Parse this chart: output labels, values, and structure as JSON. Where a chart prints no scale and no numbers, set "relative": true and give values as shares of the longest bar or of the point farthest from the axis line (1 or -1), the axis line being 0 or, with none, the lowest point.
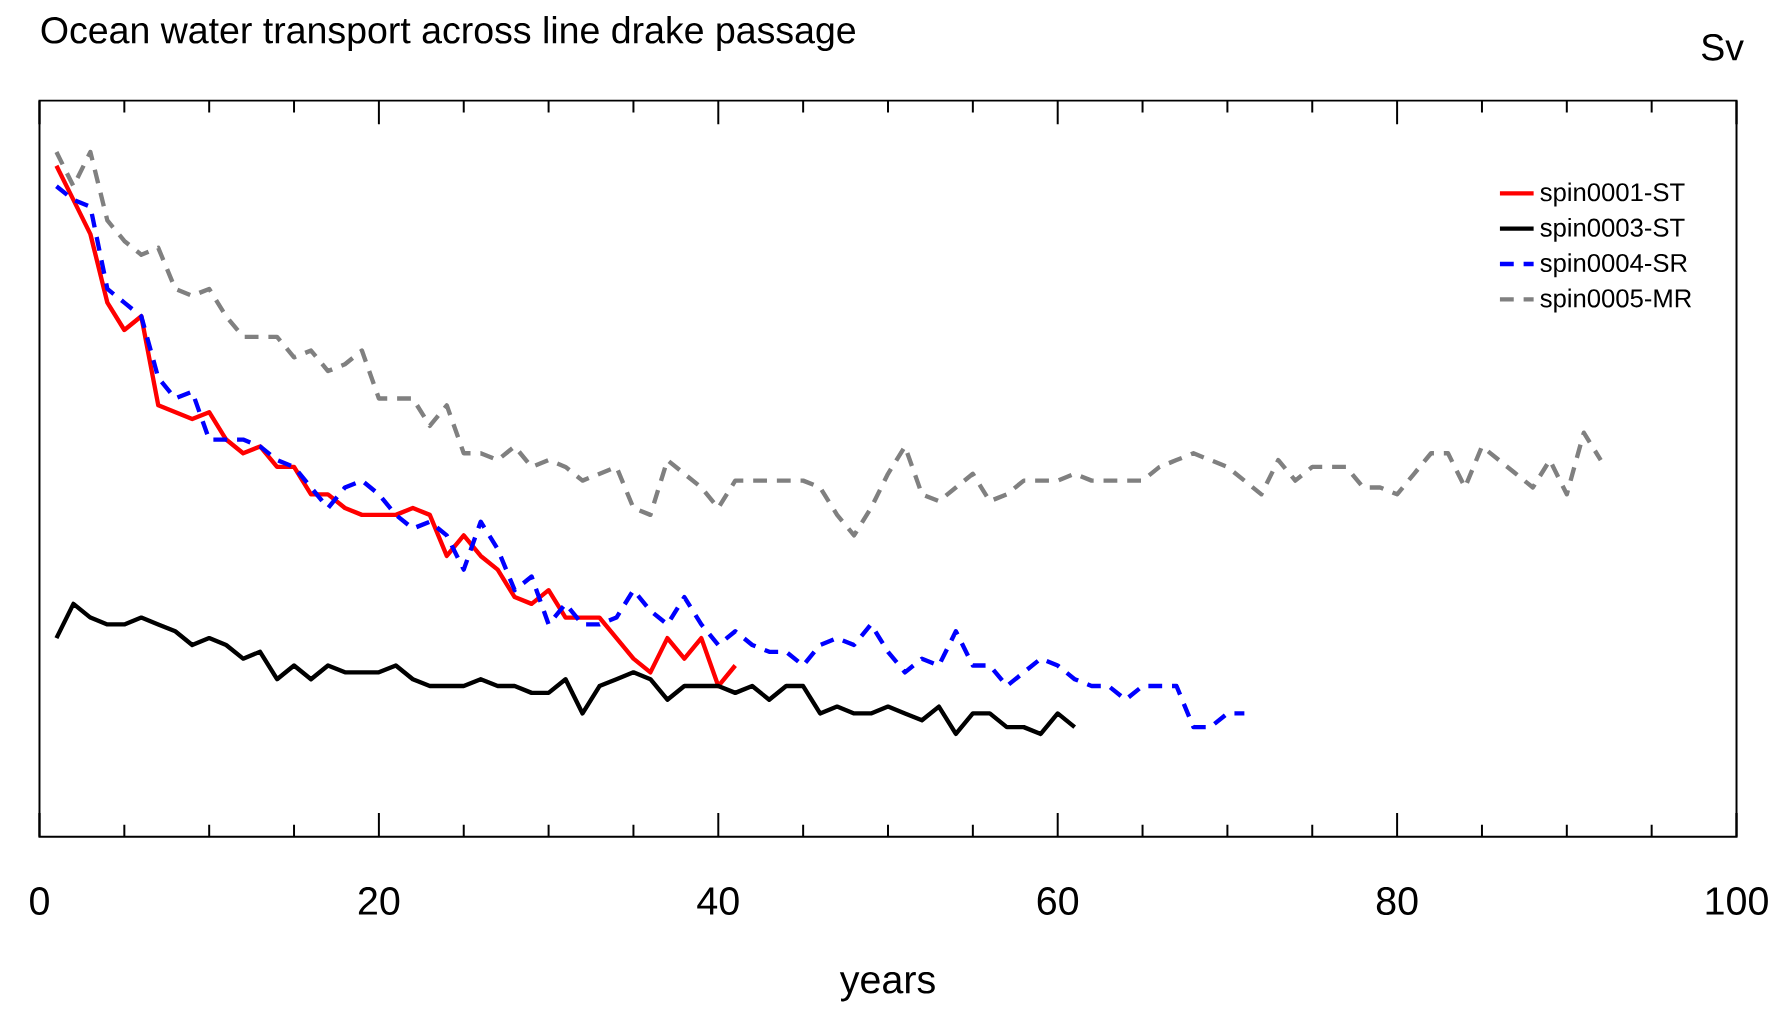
{
  "chart_data": {
    "type": "line",
    "title": "Ocean water transport across line drake passage",
    "xlabel": "years",
    "annotations": [
      "Sv"
    ],
    "relative": true,
    "xlim": [
      0,
      100
    ],
    "xticks": [
      0,
      20,
      40,
      60,
      80,
      100
    ],
    "tick_labels": "x",
    "legend": "top right",
    "marker": "none",
    "series": [
      {
        "name": "spin0001-ST",
        "color": "#ff0000",
        "line_style": "solid",
        "x": [
          1,
          2,
          3,
          4,
          5,
          6,
          7,
          8,
          9,
          10,
          11,
          12,
          13,
          14,
          15,
          16,
          17,
          18,
          19,
          20,
          21,
          22,
          23,
          24,
          25,
          26,
          27,
          28,
          29,
          30,
          31,
          32,
          33,
          34,
          35,
          36,
          37,
          38,
          39,
          40,
          41
        ],
        "values": [
          0.98,
          0.93,
          0.88,
          0.78,
          0.74,
          0.76,
          0.63,
          0.62,
          0.61,
          0.62,
          0.58,
          0.56,
          0.57,
          0.54,
          0.54,
          0.5,
          0.5,
          0.48,
          0.47,
          0.47,
          0.47,
          0.48,
          0.47,
          0.41,
          0.44,
          0.41,
          0.39,
          0.35,
          0.34,
          0.36,
          0.32,
          0.32,
          0.32,
          0.29,
          0.26,
          0.24,
          0.29,
          0.26,
          0.29,
          0.22,
          0.25
        ]
      },
      {
        "name": "spin0003-ST",
        "color": "#000000",
        "line_style": "solid",
        "x": [
          1,
          2,
          3,
          4,
          5,
          6,
          7,
          8,
          9,
          10,
          11,
          12,
          13,
          14,
          15,
          16,
          17,
          18,
          19,
          20,
          21,
          22,
          23,
          24,
          25,
          26,
          27,
          28,
          29,
          30,
          31,
          32,
          33,
          34,
          35,
          36,
          37,
          38,
          39,
          40,
          41,
          42,
          43,
          44,
          45,
          46,
          47,
          48,
          49,
          50,
          51,
          52,
          53,
          54,
          55,
          56,
          57,
          58,
          59,
          60,
          61
        ],
        "values": [
          0.29,
          0.34,
          0.32,
          0.31,
          0.31,
          0.32,
          0.31,
          0.3,
          0.28,
          0.29,
          0.28,
          0.26,
          0.27,
          0.23,
          0.25,
          0.23,
          0.25,
          0.24,
          0.24,
          0.24,
          0.25,
          0.23,
          0.22,
          0.22,
          0.22,
          0.23,
          0.22,
          0.22,
          0.21,
          0.21,
          0.23,
          0.18,
          0.22,
          0.23,
          0.24,
          0.23,
          0.2,
          0.22,
          0.22,
          0.22,
          0.21,
          0.22,
          0.2,
          0.22,
          0.22,
          0.18,
          0.19,
          0.18,
          0.18,
          0.19,
          0.18,
          0.17,
          0.19,
          0.15,
          0.18,
          0.18,
          0.16,
          0.16,
          0.15,
          0.18,
          0.16
        ]
      },
      {
        "name": "spin0004-SR",
        "color": "#0000ff",
        "line_style": "dashed",
        "x": [
          1,
          2,
          3,
          4,
          5,
          6,
          7,
          8,
          9,
          10,
          11,
          12,
          13,
          14,
          15,
          16,
          17,
          18,
          19,
          20,
          21,
          22,
          23,
          24,
          25,
          26,
          27,
          28,
          29,
          30,
          31,
          32,
          33,
          34,
          35,
          36,
          37,
          38,
          39,
          40,
          41,
          42,
          43,
          44,
          45,
          46,
          47,
          48,
          49,
          50,
          51,
          52,
          53,
          54,
          55,
          56,
          57,
          58,
          59,
          60,
          61,
          62,
          63,
          64,
          65,
          66,
          67,
          68,
          69,
          70,
          71
        ],
        "values": [
          0.95,
          0.93,
          0.92,
          0.8,
          0.78,
          0.76,
          0.67,
          0.64,
          0.65,
          0.58,
          0.58,
          0.58,
          0.57,
          0.55,
          0.54,
          0.51,
          0.48,
          0.51,
          0.52,
          0.5,
          0.47,
          0.45,
          0.46,
          0.44,
          0.39,
          0.46,
          0.42,
          0.36,
          0.38,
          0.31,
          0.34,
          0.31,
          0.31,
          0.32,
          0.36,
          0.33,
          0.31,
          0.35,
          0.31,
          0.28,
          0.3,
          0.28,
          0.27,
          0.27,
          0.25,
          0.28,
          0.29,
          0.28,
          0.31,
          0.27,
          0.24,
          0.26,
          0.25,
          0.3,
          0.25,
          0.25,
          0.22,
          0.24,
          0.26,
          0.25,
          0.23,
          0.22,
          0.22,
          0.2,
          0.22,
          0.22,
          0.22,
          0.16,
          0.16,
          0.18,
          0.18
        ]
      },
      {
        "name": "spin0005-MR",
        "color": "#808080",
        "line_style": "dashed",
        "x": [
          1,
          2,
          3,
          4,
          5,
          6,
          7,
          8,
          9,
          10,
          11,
          12,
          13,
          14,
          15,
          16,
          17,
          18,
          19,
          20,
          21,
          22,
          23,
          24,
          25,
          26,
          27,
          28,
          29,
          30,
          31,
          32,
          33,
          34,
          35,
          36,
          37,
          38,
          39,
          40,
          41,
          42,
          43,
          44,
          45,
          46,
          47,
          48,
          49,
          50,
          51,
          52,
          53,
          54,
          55,
          56,
          57,
          58,
          59,
          60,
          61,
          62,
          63,
          64,
          65,
          66,
          67,
          68,
          69,
          70,
          71,
          72,
          73,
          74,
          75,
          76,
          77,
          78,
          79,
          80,
          81,
          82,
          83,
          84,
          85,
          86,
          87,
          88,
          89,
          90,
          91,
          92
        ],
        "values": [
          1.0,
          0.95,
          1.0,
          0.9,
          0.87,
          0.85,
          0.86,
          0.8,
          0.79,
          0.8,
          0.76,
          0.73,
          0.73,
          0.73,
          0.7,
          0.71,
          0.68,
          0.69,
          0.71,
          0.64,
          0.64,
          0.64,
          0.6,
          0.63,
          0.56,
          0.56,
          0.55,
          0.57,
          0.54,
          0.55,
          0.54,
          0.52,
          0.53,
          0.54,
          0.48,
          0.47,
          0.55,
          0.53,
          0.51,
          0.48,
          0.52,
          0.52,
          0.52,
          0.52,
          0.52,
          0.51,
          0.47,
          0.44,
          0.48,
          0.53,
          0.57,
          0.5,
          0.49,
          0.51,
          0.53,
          0.49,
          0.5,
          0.52,
          0.52,
          0.52,
          0.53,
          0.52,
          0.52,
          0.52,
          0.52,
          0.54,
          0.55,
          0.56,
          0.55,
          0.54,
          0.52,
          0.5,
          0.55,
          0.52,
          0.54,
          0.54,
          0.54,
          0.51,
          0.51,
          0.5,
          0.53,
          0.56,
          0.56,
          0.51,
          0.57,
          0.55,
          0.53,
          0.51,
          0.55,
          0.5,
          0.59,
          0.55
        ]
      }
    ]
  }
}
